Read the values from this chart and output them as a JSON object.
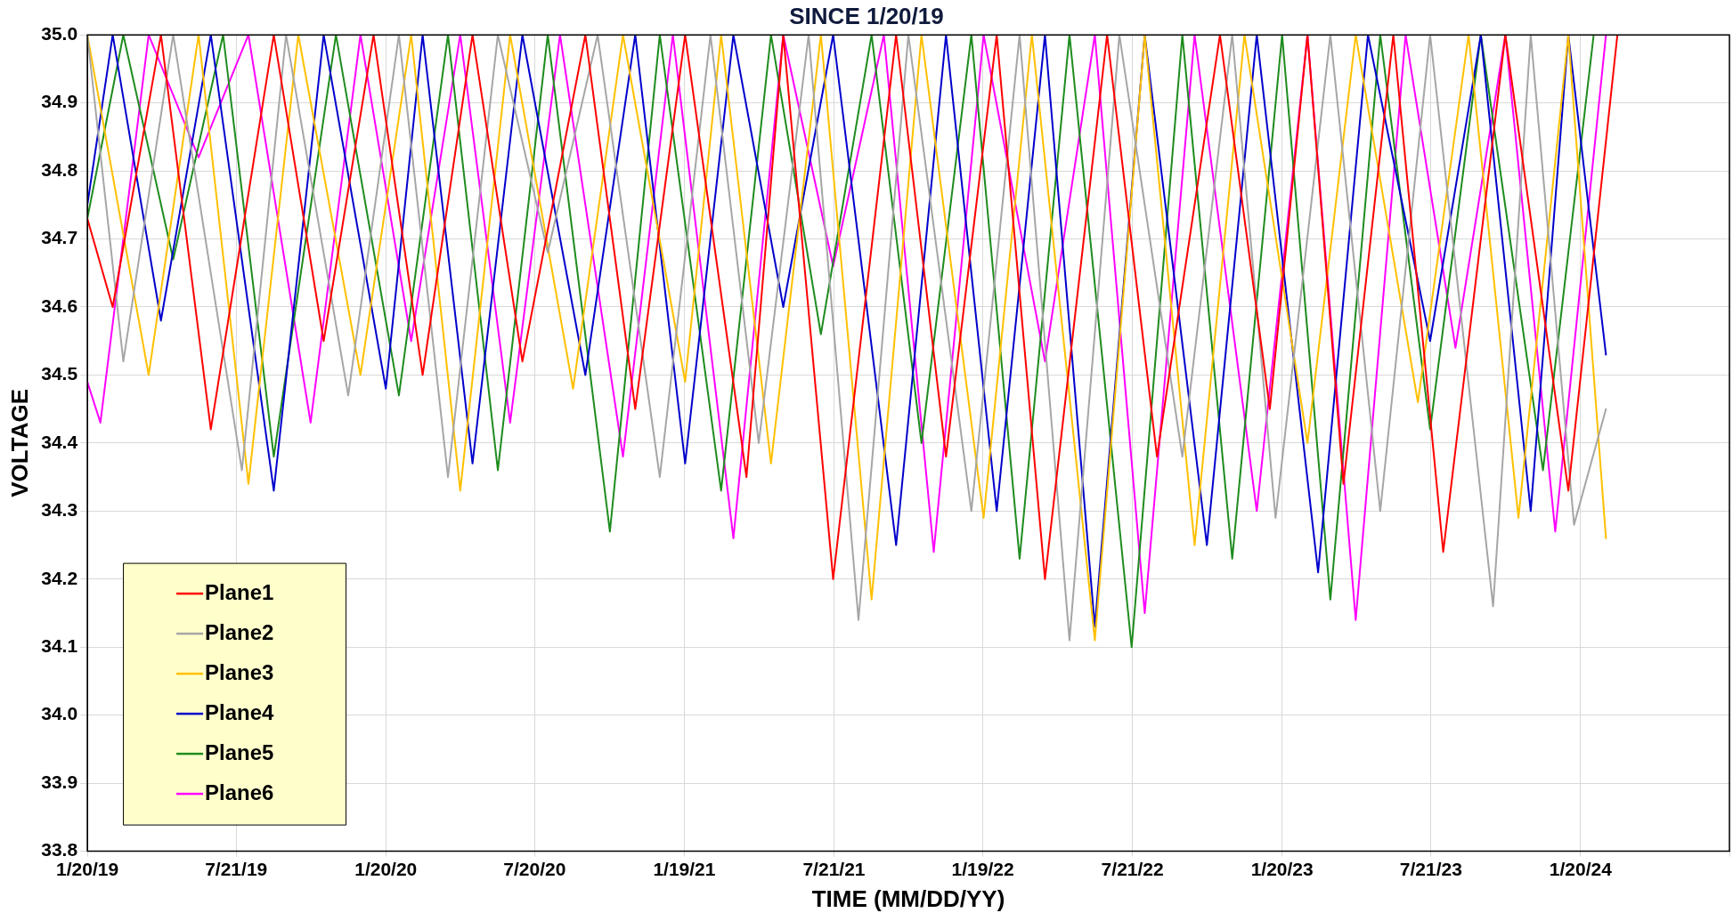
{
  "chart_data": {
    "type": "line",
    "title": "SINCE 1/20/19",
    "xlabel": "TIME (MM/DD/YY)",
    "ylabel": "VOLTAGE",
    "xlim": [
      "2019-01-20",
      "2024-07-20"
    ],
    "xticks": [
      {
        "value": "2019-01-20",
        "label": "1/20/19"
      },
      {
        "value": "2019-07-21",
        "label": "7/21/19"
      },
      {
        "value": "2020-01-20",
        "label": "1/20/20"
      },
      {
        "value": "2020-07-20",
        "label": "7/20/20"
      },
      {
        "value": "2021-01-19",
        "label": "1/19/21"
      },
      {
        "value": "2021-07-21",
        "label": "7/21/21"
      },
      {
        "value": "2022-01-19",
        "label": "1/19/22"
      },
      {
        "value": "2022-07-21",
        "label": "7/21/22"
      },
      {
        "value": "2023-01-20",
        "label": "1/20/23"
      },
      {
        "value": "2023-07-21",
        "label": "7/21/23"
      },
      {
        "value": "2024-01-20",
        "label": "1/20/24"
      },
      {
        "value": "2024-07-20",
        "label": null
      }
    ],
    "ylim": [
      33.8,
      35.0
    ],
    "yticks": [
      {
        "value": 33.8,
        "label": "33.8"
      },
      {
        "value": 33.9,
        "label": "33.9"
      },
      {
        "value": 34.0,
        "label": "34.0"
      },
      {
        "value": 34.1,
        "label": "34.1"
      },
      {
        "value": 34.2,
        "label": "34.2"
      },
      {
        "value": 34.3,
        "label": "34.3"
      },
      {
        "value": 34.4,
        "label": "34.4"
      },
      {
        "value": 34.5,
        "label": "34.5"
      },
      {
        "value": 34.6,
        "label": "34.6"
      },
      {
        "value": 34.7,
        "label": "34.7"
      },
      {
        "value": 34.8,
        "label": "34.8"
      },
      {
        "value": 34.9,
        "label": "34.9"
      },
      {
        "value": 35.0,
        "label": "35.0"
      }
    ],
    "grid": true,
    "legend": "bottom left",
    "marker": "none",
    "line_style": "solid",
    "series": [
      {
        "name": "Plane1",
        "color": "#ff0000",
        "x": [
          "2019-01-20",
          "2019-02-20",
          "2019-04-20",
          "2019-06-20",
          "2019-09-05",
          "2019-11-05",
          "2020-01-05",
          "2020-03-05",
          "2020-05-05",
          "2020-07-05",
          "2020-09-20",
          "2020-11-20",
          "2021-01-20",
          "2021-04-05",
          "2021-05-20",
          "2021-07-20",
          "2021-10-05",
          "2021-12-05",
          "2022-02-05",
          "2022-04-05",
          "2022-06-20",
          "2022-08-20",
          "2022-11-05",
          "2023-01-05",
          "2023-02-20",
          "2023-04-05",
          "2023-06-05",
          "2023-08-05",
          "2023-10-20",
          "2024-01-05",
          "2024-03-05"
        ],
        "values": [
          34.73,
          34.6,
          35,
          34.42,
          35,
          34.55,
          35,
          34.5,
          35,
          34.52,
          35,
          34.45,
          35,
          34.35,
          35,
          34.2,
          35,
          34.38,
          35,
          34.2,
          35,
          34.38,
          35,
          34.45,
          35,
          34.34,
          35,
          34.24,
          35,
          34.33,
          35
        ]
      },
      {
        "name": "Plane2",
        "color": "#a6a6a6",
        "x": [
          "2019-01-20",
          "2019-03-05",
          "2019-05-05",
          "2019-07-28",
          "2019-09-20",
          "2019-12-05",
          "2020-02-05",
          "2020-04-05",
          "2020-06-05",
          "2020-08-05",
          "2020-10-05",
          "2020-12-20",
          "2021-02-20",
          "2021-04-20",
          "2021-06-20",
          "2021-08-20",
          "2021-10-20",
          "2022-01-05",
          "2022-03-05",
          "2022-05-05",
          "2022-07-05",
          "2022-09-20",
          "2022-11-20",
          "2023-01-12",
          "2023-03-20",
          "2023-05-20",
          "2023-07-20",
          "2023-10-05",
          "2023-11-20",
          "2024-01-12",
          "2024-02-20"
        ],
        "values": [
          35,
          34.52,
          35,
          34.36,
          35,
          34.47,
          35,
          34.35,
          35,
          34.68,
          35,
          34.35,
          35,
          34.4,
          35,
          34.14,
          35,
          34.3,
          35,
          34.11,
          35,
          34.38,
          35,
          34.29,
          35,
          34.3,
          35,
          34.16,
          35,
          34.28,
          34.45
        ]
      },
      {
        "name": "Plane3",
        "color": "#ffc000",
        "x": [
          "2019-01-20",
          "2019-04-05",
          "2019-06-05",
          "2019-08-05",
          "2019-10-05",
          "2019-12-20",
          "2020-02-20",
          "2020-04-20",
          "2020-06-20",
          "2020-09-05",
          "2020-11-05",
          "2021-01-20",
          "2021-03-05",
          "2021-05-05",
          "2021-07-05",
          "2021-09-05",
          "2021-11-05",
          "2022-01-20",
          "2022-03-20",
          "2022-06-05",
          "2022-08-05",
          "2022-10-05",
          "2022-12-05",
          "2023-02-20",
          "2023-04-20",
          "2023-07-05",
          "2023-09-05",
          "2023-11-05",
          "2024-01-05",
          "2024-02-20"
        ],
        "values": [
          35,
          34.5,
          35,
          34.34,
          35,
          34.5,
          35,
          34.33,
          35,
          34.48,
          35,
          34.49,
          35,
          34.37,
          35,
          34.17,
          35,
          34.29,
          35,
          34.11,
          35,
          34.25,
          35,
          34.4,
          35,
          34.46,
          35,
          34.29,
          35,
          34.26
        ]
      },
      {
        "name": "Plane4",
        "color": "#0000cc",
        "x": [
          "2019-01-20",
          "2019-02-20",
          "2019-04-20",
          "2019-06-20",
          "2019-09-05",
          "2019-11-05",
          "2020-01-20",
          "2020-03-05",
          "2020-05-05",
          "2020-07-05",
          "2020-09-20",
          "2020-11-20",
          "2021-01-20",
          "2021-03-20",
          "2021-05-20",
          "2021-07-20",
          "2021-10-05",
          "2021-12-05",
          "2022-02-05",
          "2022-04-05",
          "2022-06-05",
          "2022-08-05",
          "2022-10-20",
          "2022-12-20",
          "2023-03-05",
          "2023-05-05",
          "2023-07-20",
          "2023-09-20",
          "2023-11-20",
          "2024-01-05",
          "2024-02-20"
        ],
        "values": [
          34.75,
          35,
          34.58,
          35,
          34.33,
          35,
          34.48,
          35,
          34.37,
          35,
          34.5,
          35,
          34.37,
          35,
          34.6,
          35,
          34.25,
          35,
          34.3,
          35,
          34.13,
          35,
          34.25,
          35,
          34.21,
          35,
          34.55,
          35,
          34.3,
          35,
          34.53
        ]
      },
      {
        "name": "Plane5",
        "color": "#1e8c1e",
        "x": [
          "2019-01-20",
          "2019-03-05",
          "2019-05-05",
          "2019-07-05",
          "2019-09-05",
          "2019-11-20",
          "2020-02-05",
          "2020-04-05",
          "2020-06-05",
          "2020-08-05",
          "2020-10-20",
          "2020-12-20",
          "2021-03-05",
          "2021-05-05",
          "2021-07-05",
          "2021-09-05",
          "2021-11-05",
          "2022-01-05",
          "2022-03-05",
          "2022-05-05",
          "2022-07-20",
          "2022-09-20",
          "2022-11-20",
          "2023-01-20",
          "2023-03-20",
          "2023-05-20",
          "2023-07-20",
          "2023-09-20",
          "2023-12-05",
          "2024-02-05"
        ],
        "values": [
          34.73,
          35,
          34.67,
          35,
          34.38,
          35,
          34.47,
          35,
          34.36,
          35,
          34.27,
          35,
          34.33,
          35,
          34.56,
          35,
          34.4,
          35,
          34.23,
          35,
          34.1,
          35,
          34.23,
          35,
          34.17,
          35,
          34.42,
          35,
          34.36,
          35
        ]
      },
      {
        "name": "Plane6",
        "color": "#ff00ff",
        "x": [
          "2019-01-20",
          "2019-02-05",
          "2019-04-05",
          "2019-06-05",
          "2019-08-05",
          "2019-10-20",
          "2019-12-20",
          "2020-02-20",
          "2020-04-20",
          "2020-06-20",
          "2020-08-20",
          "2020-11-05",
          "2021-01-05",
          "2021-03-20",
          "2021-05-20",
          "2021-07-20",
          "2021-09-20",
          "2021-11-20",
          "2022-01-20",
          "2022-04-05",
          "2022-06-05",
          "2022-08-05",
          "2022-10-05",
          "2022-12-20",
          "2023-02-20",
          "2023-04-20",
          "2023-06-20",
          "2023-08-20",
          "2023-10-20",
          "2023-12-20",
          "2024-02-20"
        ],
        "values": [
          34.49,
          34.43,
          35,
          34.82,
          35,
          34.43,
          35,
          34.55,
          35,
          34.43,
          35,
          34.38,
          35,
          34.26,
          35,
          34.66,
          35,
          34.24,
          35,
          34.52,
          35,
          34.15,
          35,
          34.3,
          35,
          34.14,
          35,
          34.54,
          35,
          34.27,
          35
        ]
      }
    ]
  }
}
